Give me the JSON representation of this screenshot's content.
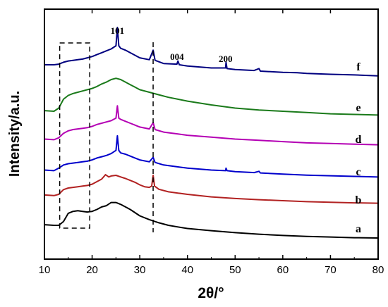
{
  "chart_data": {
    "type": "line",
    "title": "",
    "xlabel": "2θ/°",
    "ylabel": "Intensity/a.u.",
    "xlim": [
      10,
      80
    ],
    "x_ticks": [
      "10",
      "20",
      "30",
      "40",
      "50",
      "60",
      "70",
      "80"
    ],
    "y_ticks_shown": false,
    "grid": false,
    "legend": "none",
    "annotations": [
      {
        "text": "101",
        "x": 25.3
      },
      {
        "text": "004",
        "x": 37.8
      },
      {
        "text": "200",
        "x": 48.0
      }
    ],
    "reference_lines": [
      {
        "style": "dashed",
        "x": 32.8
      },
      {
        "style": "dashed-box",
        "x_range": [
          13.2,
          19.5
        ]
      }
    ],
    "series": [
      {
        "name": "a",
        "color": "#000000",
        "points": [
          [
            10,
            0.42
          ],
          [
            12,
            0.4
          ],
          [
            13,
            0.4
          ],
          [
            14,
            0.52
          ],
          [
            15,
            0.78
          ],
          [
            16,
            0.84
          ],
          [
            17,
            0.86
          ],
          [
            18,
            0.84
          ],
          [
            19,
            0.82
          ],
          [
            20,
            0.84
          ],
          [
            21,
            0.9
          ],
          [
            22,
            0.98
          ],
          [
            23,
            1.02
          ],
          [
            24,
            1.12
          ],
          [
            25,
            1.12
          ],
          [
            26,
            1.06
          ],
          [
            27,
            0.98
          ],
          [
            28,
            0.9
          ],
          [
            29,
            0.8
          ],
          [
            30,
            0.7
          ],
          [
            32,
            0.58
          ],
          [
            34,
            0.48
          ],
          [
            36,
            0.4
          ],
          [
            38,
            0.35
          ],
          [
            40,
            0.3
          ],
          [
            45,
            0.23
          ],
          [
            50,
            0.17
          ],
          [
            55,
            0.12
          ],
          [
            60,
            0.08
          ],
          [
            65,
            0.05
          ],
          [
            70,
            0.03
          ],
          [
            75,
            0.01
          ],
          [
            80,
            0.0
          ]
        ]
      },
      {
        "name": "b",
        "color": "#b22222",
        "points": [
          [
            10,
            0.38
          ],
          [
            12,
            0.36
          ],
          [
            13,
            0.4
          ],
          [
            14,
            0.55
          ],
          [
            15,
            0.6
          ],
          [
            16,
            0.62
          ],
          [
            17,
            0.64
          ],
          [
            18,
            0.66
          ],
          [
            19,
            0.68
          ],
          [
            20,
            0.72
          ],
          [
            21,
            0.8
          ],
          [
            22,
            0.88
          ],
          [
            22.8,
            1.02
          ],
          [
            23.5,
            0.95
          ],
          [
            24,
            0.98
          ],
          [
            25,
            1.0
          ],
          [
            26,
            0.95
          ],
          [
            27,
            0.9
          ],
          [
            28,
            0.84
          ],
          [
            29,
            0.78
          ],
          [
            30,
            0.7
          ],
          [
            31,
            0.64
          ],
          [
            32,
            0.62
          ],
          [
            32.5,
            0.66
          ],
          [
            32.8,
            1.0
          ],
          [
            33.1,
            0.66
          ],
          [
            34,
            0.56
          ],
          [
            36,
            0.48
          ],
          [
            38,
            0.44
          ],
          [
            40,
            0.4
          ],
          [
            45,
            0.32
          ],
          [
            50,
            0.27
          ],
          [
            55,
            0.23
          ],
          [
            60,
            0.2
          ],
          [
            65,
            0.17
          ],
          [
            70,
            0.15
          ],
          [
            75,
            0.13
          ],
          [
            80,
            0.12
          ]
        ]
      },
      {
        "name": "c",
        "color": "#0000cc",
        "points": [
          [
            10,
            0.3
          ],
          [
            12,
            0.28
          ],
          [
            13,
            0.36
          ],
          [
            14,
            0.46
          ],
          [
            15,
            0.5
          ],
          [
            16,
            0.52
          ],
          [
            17,
            0.54
          ],
          [
            18,
            0.56
          ],
          [
            19,
            0.58
          ],
          [
            20,
            0.62
          ],
          [
            21,
            0.68
          ],
          [
            22,
            0.72
          ],
          [
            23,
            0.76
          ],
          [
            24,
            0.82
          ],
          [
            25,
            0.92
          ],
          [
            25.3,
            1.38
          ],
          [
            25.6,
            0.92
          ],
          [
            26,
            0.84
          ],
          [
            27,
            0.8
          ],
          [
            28,
            0.74
          ],
          [
            29,
            0.68
          ],
          [
            30,
            0.62
          ],
          [
            32,
            0.56
          ],
          [
            32.8,
            0.7
          ],
          [
            33.2,
            0.54
          ],
          [
            35,
            0.46
          ],
          [
            38,
            0.4
          ],
          [
            40,
            0.36
          ],
          [
            45,
            0.3
          ],
          [
            48,
            0.28
          ],
          [
            48.1,
            0.36
          ],
          [
            48.3,
            0.28
          ],
          [
            50,
            0.25
          ],
          [
            54,
            0.22
          ],
          [
            55,
            0.26
          ],
          [
            55.3,
            0.21
          ],
          [
            60,
            0.17
          ],
          [
            65,
            0.14
          ],
          [
            70,
            0.12
          ],
          [
            75,
            0.1
          ],
          [
            80,
            0.08
          ]
        ]
      },
      {
        "name": "d",
        "color": "#b400b4",
        "points": [
          [
            10,
            0.3
          ],
          [
            12,
            0.28
          ],
          [
            13,
            0.34
          ],
          [
            14,
            0.48
          ],
          [
            15,
            0.56
          ],
          [
            16,
            0.6
          ],
          [
            17,
            0.62
          ],
          [
            18,
            0.64
          ],
          [
            19,
            0.66
          ],
          [
            20,
            0.7
          ],
          [
            21,
            0.76
          ],
          [
            22,
            0.8
          ],
          [
            23,
            0.84
          ],
          [
            24,
            0.88
          ],
          [
            25,
            0.96
          ],
          [
            25.3,
            1.35
          ],
          [
            25.6,
            0.96
          ],
          [
            26,
            0.92
          ],
          [
            27,
            0.86
          ],
          [
            28,
            0.8
          ],
          [
            29,
            0.74
          ],
          [
            30,
            0.68
          ],
          [
            32,
            0.62
          ],
          [
            32.8,
            0.82
          ],
          [
            33.2,
            0.6
          ],
          [
            35,
            0.52
          ],
          [
            38,
            0.46
          ],
          [
            40,
            0.42
          ],
          [
            45,
            0.36
          ],
          [
            50,
            0.3
          ],
          [
            55,
            0.26
          ],
          [
            60,
            0.22
          ],
          [
            65,
            0.18
          ],
          [
            70,
            0.16
          ],
          [
            75,
            0.14
          ],
          [
            80,
            0.12
          ]
        ]
      },
      {
        "name": "e",
        "color": "#1a7a1a",
        "points": [
          [
            10,
            0.22
          ],
          [
            12,
            0.2
          ],
          [
            13,
            0.3
          ],
          [
            14,
            0.58
          ],
          [
            15,
            0.7
          ],
          [
            16,
            0.76
          ],
          [
            17,
            0.8
          ],
          [
            18,
            0.84
          ],
          [
            19,
            0.88
          ],
          [
            20,
            0.92
          ],
          [
            21,
            0.98
          ],
          [
            22,
            1.06
          ],
          [
            23,
            1.12
          ],
          [
            24,
            1.2
          ],
          [
            25,
            1.24
          ],
          [
            26,
            1.2
          ],
          [
            27,
            1.12
          ],
          [
            28,
            1.04
          ],
          [
            29,
            0.96
          ],
          [
            30,
            0.88
          ],
          [
            32,
            0.8
          ],
          [
            34,
            0.72
          ],
          [
            36,
            0.64
          ],
          [
            38,
            0.58
          ],
          [
            40,
            0.52
          ],
          [
            45,
            0.4
          ],
          [
            50,
            0.3
          ],
          [
            55,
            0.24
          ],
          [
            60,
            0.2
          ],
          [
            65,
            0.16
          ],
          [
            70,
            0.12
          ],
          [
            75,
            0.1
          ],
          [
            80,
            0.08
          ]
        ]
      },
      {
        "name": "f",
        "color": "#000080",
        "points": [
          [
            10,
            0.4
          ],
          [
            12,
            0.4
          ],
          [
            13,
            0.42
          ],
          [
            14,
            0.48
          ],
          [
            15,
            0.52
          ],
          [
            16,
            0.54
          ],
          [
            17,
            0.56
          ],
          [
            18,
            0.58
          ],
          [
            19,
            0.62
          ],
          [
            20,
            0.66
          ],
          [
            21,
            0.72
          ],
          [
            22,
            0.78
          ],
          [
            23,
            0.84
          ],
          [
            24,
            0.9
          ],
          [
            25,
            1.0
          ],
          [
            25.3,
            1.58
          ],
          [
            25.6,
            1.0
          ],
          [
            26,
            0.92
          ],
          [
            27,
            0.86
          ],
          [
            28,
            0.78
          ],
          [
            29,
            0.7
          ],
          [
            30,
            0.62
          ],
          [
            32,
            0.56
          ],
          [
            32.8,
            0.86
          ],
          [
            33.2,
            0.54
          ],
          [
            35,
            0.44
          ],
          [
            37.8,
            0.42
          ],
          [
            38,
            0.52
          ],
          [
            38.3,
            0.4
          ],
          [
            40,
            0.36
          ],
          [
            45,
            0.3
          ],
          [
            48,
            0.3
          ],
          [
            48.1,
            0.48
          ],
          [
            48.3,
            0.28
          ],
          [
            50,
            0.25
          ],
          [
            54,
            0.22
          ],
          [
            55,
            0.28
          ],
          [
            55.3,
            0.2
          ],
          [
            60,
            0.16
          ],
          [
            63,
            0.15
          ],
          [
            65,
            0.13
          ],
          [
            70,
            0.1
          ],
          [
            75,
            0.08
          ],
          [
            80,
            0.05
          ]
        ]
      }
    ]
  }
}
